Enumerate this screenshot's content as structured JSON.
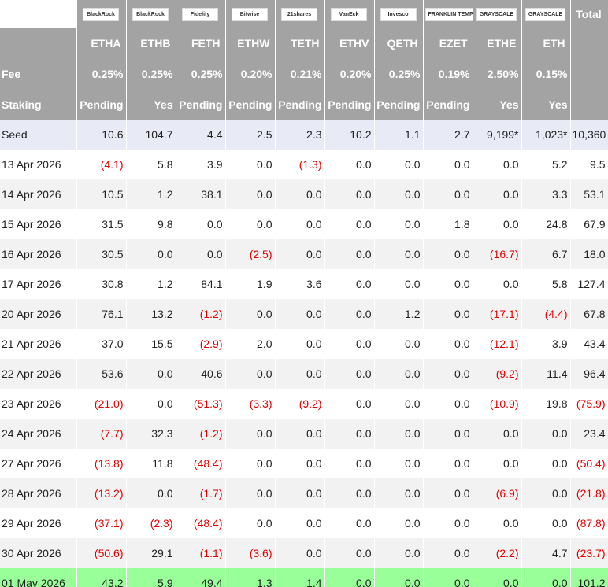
{
  "header": {
    "logos": [
      "BlackRock",
      "BlackRock",
      "Fidelity",
      "Bitwise",
      "21shares",
      "VanEck",
      "Invesco",
      "FRANKLIN TEMPLETON",
      "GRAYSCALE",
      "GRAYSCALE"
    ],
    "total": "Total",
    "tickers": [
      "ETHA",
      "ETHB",
      "FETH",
      "ETHW",
      "TETH",
      "ETHV",
      "QETH",
      "EZET",
      "ETHE",
      "ETH"
    ]
  },
  "fee": {
    "label": "Fee",
    "values": [
      "0.25%",
      "0.25%",
      "0.25%",
      "0.20%",
      "0.21%",
      "0.20%",
      "0.25%",
      "0.19%",
      "2.50%",
      "0.15%"
    ]
  },
  "staking": {
    "label": "Staking",
    "values": [
      "Pending",
      "Yes",
      "Pending",
      "Pending",
      "Pending",
      "Pending",
      "Pending",
      "Pending",
      "Yes",
      "Yes"
    ]
  },
  "rows": [
    [
      "Seed",
      "10.6",
      "104.7",
      "4.4",
      "2.5",
      "2.3",
      "10.2",
      "1.1",
      "2.7",
      "9,199*",
      "1,023*",
      "10,360"
    ],
    [
      "13 Apr 2026",
      "(4.1)",
      "5.8",
      "3.9",
      "0.0",
      "(1.3)",
      "0.0",
      "0.0",
      "0.0",
      "0.0",
      "5.2",
      "9.5"
    ],
    [
      "14 Apr 2026",
      "10.5",
      "1.2",
      "38.1",
      "0.0",
      "0.0",
      "0.0",
      "0.0",
      "0.0",
      "0.0",
      "3.3",
      "53.1"
    ],
    [
      "15 Apr 2026",
      "31.5",
      "9.8",
      "0.0",
      "0.0",
      "0.0",
      "0.0",
      "0.0",
      "1.8",
      "0.0",
      "24.8",
      "67.9"
    ],
    [
      "16 Apr 2026",
      "30.5",
      "0.0",
      "0.0",
      "(2.5)",
      "0.0",
      "0.0",
      "0.0",
      "0.0",
      "(16.7)",
      "6.7",
      "18.0"
    ],
    [
      "17 Apr 2026",
      "30.8",
      "1.2",
      "84.1",
      "1.9",
      "3.6",
      "0.0",
      "0.0",
      "0.0",
      "0.0",
      "5.8",
      "127.4"
    ],
    [
      "20 Apr 2026",
      "76.1",
      "13.2",
      "(1.2)",
      "0.0",
      "0.0",
      "0.0",
      "1.2",
      "0.0",
      "(17.1)",
      "(4.4)",
      "67.8"
    ],
    [
      "21 Apr 2026",
      "37.0",
      "15.5",
      "(2.9)",
      "2.0",
      "0.0",
      "0.0",
      "0.0",
      "0.0",
      "(12.1)",
      "3.9",
      "43.4"
    ],
    [
      "22 Apr 2026",
      "53.6",
      "0.0",
      "40.6",
      "0.0",
      "0.0",
      "0.0",
      "0.0",
      "0.0",
      "(9.2)",
      "11.4",
      "96.4"
    ],
    [
      "23 Apr 2026",
      "(21.0)",
      "0.0",
      "(51.3)",
      "(3.3)",
      "(9.2)",
      "0.0",
      "0.0",
      "0.0",
      "(10.9)",
      "19.8",
      "(75.9)"
    ],
    [
      "24 Apr 2026",
      "(7.7)",
      "32.3",
      "(1.2)",
      "0.0",
      "0.0",
      "0.0",
      "0.0",
      "0.0",
      "0.0",
      "0.0",
      "23.4"
    ],
    [
      "27 Apr 2026",
      "(13.8)",
      "11.8",
      "(48.4)",
      "0.0",
      "0.0",
      "0.0",
      "0.0",
      "0.0",
      "0.0",
      "0.0",
      "(50.4)"
    ],
    [
      "28 Apr 2026",
      "(13.2)",
      "0.0",
      "(1.7)",
      "0.0",
      "0.0",
      "0.0",
      "0.0",
      "0.0",
      "(6.9)",
      "0.0",
      "(21.8)"
    ],
    [
      "29 Apr 2026",
      "(37.1)",
      "(2.3)",
      "(48.4)",
      "0.0",
      "0.0",
      "0.0",
      "0.0",
      "0.0",
      "0.0",
      "0.0",
      "(87.8)"
    ],
    [
      "30 Apr 2026",
      "(50.6)",
      "29.1",
      "(1.1)",
      "(3.6)",
      "0.0",
      "0.0",
      "0.0",
      "0.0",
      "(2.2)",
      "4.7",
      "(23.7)"
    ],
    [
      "01 May 2026",
      "43.2",
      "5.9",
      "49.4",
      "1.3",
      "1.4",
      "0.0",
      "0.0",
      "0.0",
      "0.0",
      "0.0",
      "101.2"
    ]
  ]
}
